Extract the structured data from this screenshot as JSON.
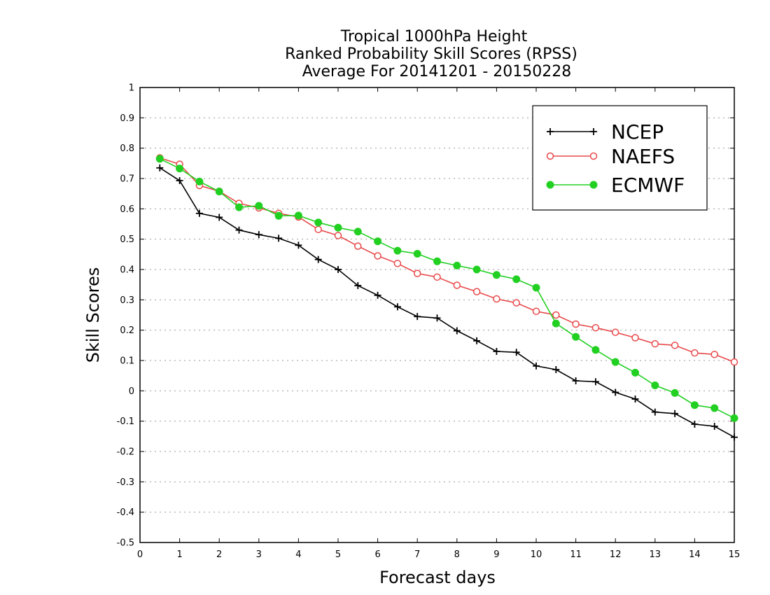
{
  "chart_data": {
    "type": "line",
    "title": [
      "Tropical 1000hPa Height",
      "Ranked Probability Skill Scores (RPSS)",
      "Average For 20141201 - 20150228"
    ],
    "xlabel": "Forecast days",
    "ylabel": "Skill Scores",
    "xlim": [
      0,
      15
    ],
    "ylim": [
      -0.5,
      1
    ],
    "xticks": [
      "0",
      "1",
      "2",
      "3",
      "4",
      "5",
      "6",
      "7",
      "8",
      "9",
      "10",
      "11",
      "12",
      "13",
      "14",
      "15"
    ],
    "yticks": [
      "1",
      "0.9",
      "0.8",
      "0.7",
      "0.6",
      "0.5",
      "0.4",
      "0.3",
      "0.2",
      "0.1",
      "0",
      "-0.1",
      "-0.2",
      "-0.3",
      "-0.4",
      "-0.5"
    ],
    "grid": true,
    "legend_position": "top-right",
    "x": [
      0.5,
      1,
      1.5,
      2,
      2.5,
      3,
      3.5,
      4,
      4.5,
      5,
      5.5,
      6,
      6.5,
      7,
      7.5,
      8,
      8.5,
      9,
      9.5,
      10,
      10.5,
      11,
      11.5,
      12,
      12.5,
      13,
      13.5,
      14,
      14.5,
      15
    ],
    "series": [
      {
        "name": "NCEP",
        "color": "#000000",
        "marker": "plus",
        "values": [
          0.735,
          0.693,
          0.585,
          0.572,
          0.53,
          0.515,
          0.503,
          0.48,
          0.433,
          0.4,
          0.347,
          0.315,
          0.277,
          0.245,
          0.24,
          0.198,
          0.165,
          0.13,
          0.127,
          0.082,
          0.07,
          0.033,
          0.03,
          -0.005,
          -0.027,
          -0.07,
          -0.075,
          -0.11,
          -0.117,
          -0.153
        ]
      },
      {
        "name": "NAEFS",
        "color": "#e8484a",
        "marker": "open-circle",
        "values": [
          0.768,
          0.747,
          0.677,
          0.658,
          0.618,
          0.603,
          0.585,
          0.573,
          0.532,
          0.512,
          0.477,
          0.445,
          0.42,
          0.387,
          0.375,
          0.348,
          0.327,
          0.303,
          0.29,
          0.262,
          0.25,
          0.22,
          0.208,
          0.193,
          0.175,
          0.155,
          0.15,
          0.125,
          0.12,
          0.095
        ]
      },
      {
        "name": "ECMWF",
        "color": "#22d022",
        "marker": "filled-circle",
        "values": [
          0.765,
          0.733,
          0.69,
          0.657,
          0.605,
          0.61,
          0.577,
          0.578,
          0.555,
          0.538,
          0.525,
          0.493,
          0.462,
          0.452,
          0.427,
          0.413,
          0.4,
          0.382,
          0.368,
          0.34,
          0.222,
          0.178,
          0.135,
          0.095,
          0.06,
          0.018,
          -0.007,
          -0.047,
          -0.057,
          -0.09
        ]
      }
    ]
  }
}
